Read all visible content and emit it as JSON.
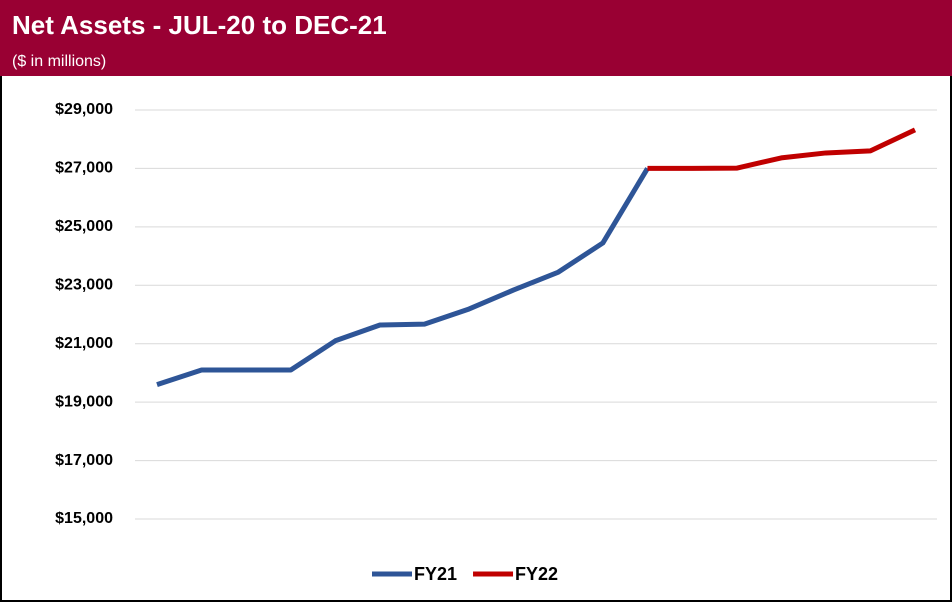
{
  "chart_data": {
    "type": "line",
    "title": "Net Assets - JUL-20 to DEC-21",
    "subtitle": "($ in millions)",
    "categories": [
      null,
      null,
      null,
      null,
      null,
      null,
      null,
      null,
      null,
      null,
      null,
      null,
      null,
      null,
      null,
      null,
      null,
      null
    ],
    "series": [
      {
        "name": "FY21",
        "color": "#2e5597",
        "values": [
          19600,
          20100,
          20100,
          20100,
          21100,
          21640,
          21670,
          22190,
          22840,
          23450,
          24450,
          27000,
          null,
          null,
          null,
          null,
          null,
          null
        ]
      },
      {
        "name": "FY22",
        "color": "#c00000",
        "values": [
          null,
          null,
          null,
          null,
          null,
          null,
          null,
          null,
          null,
          null,
          null,
          27000,
          27000,
          27010,
          27360,
          27530,
          27600,
          28320
        ]
      }
    ],
    "ylim": [
      15000,
      29000
    ],
    "yticks": [
      {
        "value": 15000,
        "label": "$15,000"
      },
      {
        "value": 17000,
        "label": "$17,000"
      },
      {
        "value": 19000,
        "label": "$19,000"
      },
      {
        "value": 21000,
        "label": "$21,000"
      },
      {
        "value": 23000,
        "label": "$23,000"
      },
      {
        "value": 25000,
        "label": "$25,000"
      },
      {
        "value": 27000,
        "label": "$27,000"
      },
      {
        "value": 29000,
        "label": "$29,000"
      }
    ],
    "grid": true,
    "legend": "bottom"
  }
}
